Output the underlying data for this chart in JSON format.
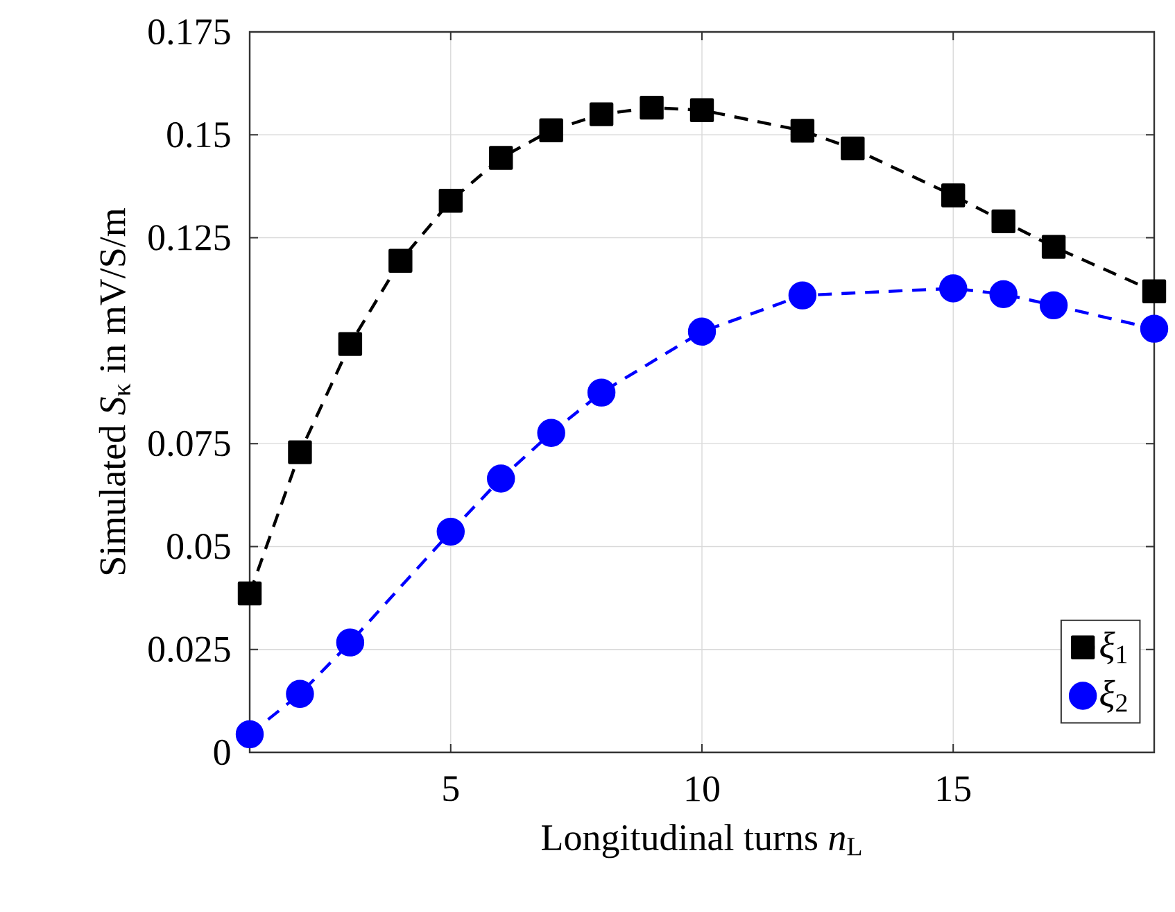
{
  "chart_data": {
    "type": "line",
    "xlabel": "Longitudinal turns *n*$_{L}$",
    "ylabel": "Simulated *S*$_{κ}$ in mV/S/m",
    "xlim": [
      1,
      19
    ],
    "xticks": [
      5,
      10,
      15
    ],
    "ylim": [
      0,
      0.175
    ],
    "yticks": [
      0,
      0.025,
      0.05,
      0.075,
      0.125,
      0.15,
      0.175
    ],
    "grid": true,
    "legend": "bottom right",
    "line_style": "dashed",
    "series": [
      {
        "name": "*ξ*$_{1}$",
        "color": "#000000",
        "marker": "square",
        "x": [
          1,
          2,
          3,
          4,
          5,
          6,
          7,
          8,
          9,
          10,
          12,
          13,
          15,
          16,
          17,
          19
        ],
        "values": [
          0.0386,
          0.0729,
          0.0992,
          0.1194,
          0.134,
          0.1444,
          0.1511,
          0.155,
          0.1566,
          0.156,
          0.151,
          0.1467,
          0.1353,
          0.129,
          0.1228,
          0.112
        ]
      },
      {
        "name": "*ξ*$_{2}$",
        "color": "#0000ff",
        "marker": "circle",
        "x": [
          1,
          2,
          3,
          5,
          6,
          7,
          8,
          10,
          12,
          15,
          16,
          17,
          19
        ],
        "values": [
          0.0044,
          0.0142,
          0.0267,
          0.0536,
          0.0665,
          0.0776,
          0.0874,
          0.1022,
          0.111,
          0.1127,
          0.1113,
          0.1086,
          0.1029
        ]
      }
    ]
  }
}
